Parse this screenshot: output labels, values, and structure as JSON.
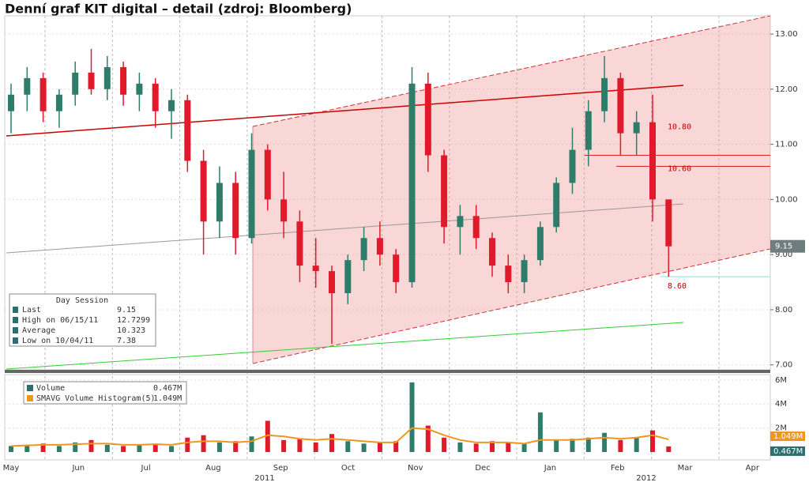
{
  "chart_data": {
    "type": "candlestick",
    "title": "Denní graf KIT digital – detail (zdroj: Bloomberg)",
    "ylim": [
      6.91,
      13.33
    ],
    "yticks": [
      {
        "value": 7,
        "label": "7.00"
      },
      {
        "value": 8,
        "label": "8.00"
      },
      {
        "value": 9,
        "label": "9.00"
      },
      {
        "value": 10,
        "label": "10.00"
      },
      {
        "value": 11,
        "label": "11.00"
      },
      {
        "value": 12,
        "label": "12.00"
      },
      {
        "value": 13,
        "label": "13.00"
      }
    ],
    "colors": {
      "up": "#2e7d6b",
      "down": "#e0192b"
    },
    "ohlc": [
      [
        11.6,
        12.1,
        11.2,
        11.9
      ],
      [
        11.9,
        12.4,
        11.6,
        12.2
      ],
      [
        12.2,
        12.3,
        11.4,
        11.6
      ],
      [
        11.6,
        12.0,
        11.3,
        11.9
      ],
      [
        11.9,
        12.5,
        11.7,
        12.3
      ],
      [
        12.3,
        12.73,
        11.9,
        12.0
      ],
      [
        12.0,
        12.6,
        11.8,
        12.4
      ],
      [
        12.4,
        12.5,
        11.7,
        11.9
      ],
      [
        11.9,
        12.3,
        11.6,
        12.1
      ],
      [
        12.1,
        12.2,
        11.3,
        11.6
      ],
      [
        11.6,
        12.0,
        11.1,
        11.8
      ],
      [
        11.8,
        11.9,
        10.5,
        10.7
      ],
      [
        10.7,
        10.9,
        9.0,
        9.6
      ],
      [
        9.6,
        10.6,
        9.3,
        10.3
      ],
      [
        10.3,
        10.5,
        9.0,
        9.3
      ],
      [
        9.3,
        11.2,
        9.2,
        10.9
      ],
      [
        10.9,
        11.0,
        9.8,
        10.0
      ],
      [
        10.0,
        10.5,
        9.3,
        9.6
      ],
      [
        9.6,
        9.8,
        8.5,
        8.8
      ],
      [
        8.8,
        9.3,
        8.4,
        8.7
      ],
      [
        8.7,
        8.8,
        7.38,
        8.3
      ],
      [
        8.3,
        9.0,
        8.1,
        8.9
      ],
      [
        8.9,
        9.5,
        8.7,
        9.3
      ],
      [
        9.3,
        9.6,
        8.8,
        9.0
      ],
      [
        9.0,
        9.1,
        8.3,
        8.5
      ],
      [
        8.5,
        12.4,
        8.4,
        12.1
      ],
      [
        12.1,
        12.3,
        10.5,
        10.8
      ],
      [
        10.8,
        10.9,
        9.2,
        9.5
      ],
      [
        9.5,
        9.9,
        9.0,
        9.7
      ],
      [
        9.7,
        9.9,
        9.1,
        9.3
      ],
      [
        9.3,
        9.4,
        8.6,
        8.8
      ],
      [
        8.8,
        9.0,
        8.3,
        8.5
      ],
      [
        8.5,
        9.0,
        8.3,
        8.9
      ],
      [
        8.9,
        9.6,
        8.8,
        9.5
      ],
      [
        9.5,
        10.4,
        9.4,
        10.3
      ],
      [
        10.3,
        11.3,
        10.1,
        10.9
      ],
      [
        10.9,
        11.8,
        10.6,
        11.6
      ],
      [
        11.6,
        12.6,
        11.4,
        12.2
      ],
      [
        12.2,
        12.3,
        10.8,
        11.2
      ],
      [
        11.2,
        11.6,
        10.8,
        11.4
      ],
      [
        11.4,
        11.9,
        9.6,
        10.0
      ],
      [
        10.0,
        10.0,
        8.6,
        9.15
      ]
    ],
    "levels": [
      {
        "value": 10.8,
        "label": "10.80"
      },
      {
        "value": 10.6,
        "label": "10.60"
      },
      {
        "value": 8.6,
        "label": "8.60"
      }
    ],
    "last": {
      "value": 9.15,
      "label": "9.15"
    },
    "months": [
      "May",
      "Jun",
      "Jul",
      "Aug",
      "Sep",
      "Oct",
      "Nov",
      "Dec",
      "Jan",
      "Feb",
      "Mar",
      "Apr"
    ],
    "years": [
      "2011",
      "2012"
    ],
    "legend": {
      "title": "Day Session",
      "rows": [
        {
          "label": "Last",
          "value": 9.15
        },
        {
          "label": "High on 06/15/11",
          "value": 12.7299
        },
        {
          "label": "Average",
          "value": 10.323
        },
        {
          "label": "Low on 10/04/11",
          "value": 7.38
        }
      ]
    },
    "volume": {
      "ylim": [
        0,
        6.45
      ],
      "yticks": [
        {
          "value": 2,
          "label": "2M"
        },
        {
          "value": 4,
          "label": "4M"
        },
        {
          "value": 6,
          "label": "6M"
        }
      ],
      "series": [
        {
          "name": "Volume",
          "last_label": "0.467M",
          "color": "#2e6e6e",
          "values": [
            0.5,
            0.6,
            0.7,
            0.5,
            0.8,
            1.0,
            0.6,
            0.5,
            0.6,
            0.7,
            0.5,
            1.2,
            1.4,
            0.8,
            0.9,
            1.3,
            2.6,
            1.0,
            1.1,
            0.8,
            1.5,
            0.9,
            0.7,
            0.8,
            0.9,
            5.8,
            2.2,
            1.2,
            0.8,
            0.7,
            0.9,
            0.8,
            0.7,
            3.3,
            1.0,
            1.1,
            1.2,
            1.6,
            1.0,
            1.2,
            1.8,
            0.467
          ]
        },
        {
          "name": "SMAVG Volume Histogram(5)",
          "last_label": "1.049M",
          "color": "#f0961e",
          "values": [
            0.5,
            0.55,
            0.6,
            0.6,
            0.65,
            0.7,
            0.7,
            0.6,
            0.6,
            0.65,
            0.6,
            0.8,
            0.9,
            0.9,
            0.8,
            0.9,
            1.4,
            1.3,
            1.1,
            1.0,
            1.1,
            1.0,
            0.9,
            0.8,
            0.8,
            2.0,
            1.9,
            1.4,
            1.0,
            0.8,
            0.8,
            0.8,
            0.7,
            1.0,
            1.0,
            1.0,
            1.1,
            1.2,
            1.1,
            1.2,
            1.4,
            1.049
          ]
        }
      ]
    }
  }
}
